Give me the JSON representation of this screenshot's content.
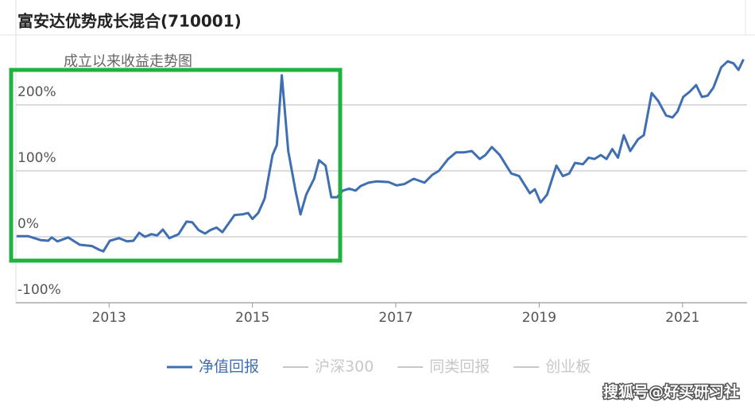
{
  "chart_data": {
    "type": "line",
    "title": "富安达优势成长混合(710001)",
    "subtitle": "成立以来收益走势图",
    "watermark": "搜狐号@好买研习社",
    "x": [
      2011.71,
      2011.87,
      2012.04,
      2012.15,
      2012.2,
      2012.28,
      2012.43,
      2012.59,
      2012.76,
      2012.87,
      2012.92,
      2013.01,
      2013.14,
      2013.25,
      2013.34,
      2013.42,
      2013.5,
      2013.59,
      2013.67,
      2013.75,
      2013.84,
      2013.97,
      2014.08,
      2014.16,
      2014.25,
      2014.34,
      2014.41,
      2014.5,
      2014.58,
      2014.75,
      2014.86,
      2014.94,
      2015.0,
      2015.08,
      2015.17,
      2015.28,
      2015.34,
      2015.41,
      2015.5,
      2015.6,
      2015.67,
      2015.75,
      2015.86,
      2015.93,
      2016.02,
      2016.1,
      2016.18,
      2016.26,
      2016.35,
      2016.44,
      2016.51,
      2016.62,
      2016.73,
      2016.9,
      2017.01,
      2017.12,
      2017.25,
      2017.4,
      2017.51,
      2017.6,
      2017.73,
      2017.84,
      2017.95,
      2018.06,
      2018.17,
      2018.25,
      2018.34,
      2018.45,
      2018.61,
      2018.72,
      2018.87,
      2018.94,
      2019.02,
      2019.11,
      2019.24,
      2019.33,
      2019.42,
      2019.5,
      2019.61,
      2019.69,
      2019.77,
      2019.86,
      2019.94,
      2020.02,
      2020.1,
      2020.18,
      2020.27,
      2020.38,
      2020.46,
      2020.57,
      2020.66,
      2020.77,
      2020.86,
      2020.93,
      2021.01,
      2021.1,
      2021.19,
      2021.27,
      2021.35,
      2021.43,
      2021.54,
      2021.63,
      2021.71,
      2021.78,
      2021.85
    ],
    "series": [
      {
        "name": "净值回报",
        "color": "#3f6fb0",
        "values": [
          1,
          1,
          -5,
          -6,
          -1,
          -7,
          -1,
          -12,
          -14,
          -20,
          -22,
          -6,
          -2,
          -7,
          -6,
          6,
          0,
          4,
          2,
          11,
          -2,
          4,
          23,
          22,
          10,
          5,
          10,
          14,
          7,
          33,
          34,
          36,
          27,
          36,
          58,
          124,
          139,
          245,
          130,
          70,
          34,
          64,
          88,
          116,
          108,
          60,
          60,
          70,
          73,
          70,
          77,
          82,
          84,
          83,
          78,
          80,
          88,
          82,
          94,
          100,
          118,
          128,
          128,
          130,
          118,
          124,
          136,
          124,
          96,
          92,
          66,
          72,
          52,
          64,
          108,
          92,
          96,
          112,
          110,
          120,
          118,
          124,
          118,
          133,
          120,
          154,
          130,
          148,
          154,
          218,
          206,
          184,
          181,
          190,
          212,
          220,
          230,
          212,
          214,
          226,
          257,
          266,
          263,
          253,
          269
        ]
      }
    ],
    "legend_inactive": [
      {
        "name": "沪深300",
        "color": "#c8c8c8"
      },
      {
        "name": "同类回报",
        "color": "#c8c8c8"
      },
      {
        "name": "创业板",
        "color": "#c8c8c8"
      }
    ],
    "xlim": [
      2011.7,
      2021.9
    ],
    "xticks": [
      2013,
      2015,
      2017,
      2019,
      2021
    ],
    "ylim": [
      -100,
      290
    ],
    "yticks": [
      {
        "value": -100,
        "label": "-100%"
      },
      {
        "value": 0,
        "label": "0%"
      },
      {
        "value": 100,
        "label": "100%"
      },
      {
        "value": 200,
        "label": "200%"
      }
    ],
    "grid": true
  }
}
